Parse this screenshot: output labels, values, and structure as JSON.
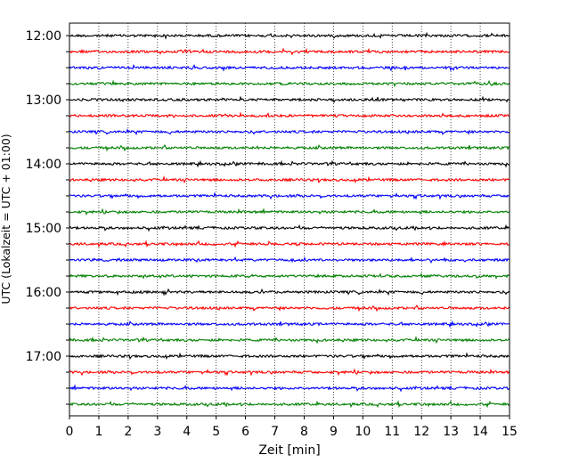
{
  "chart_data": {
    "type": "line",
    "title": "",
    "xlabel": "Zeit  [min]",
    "ylabel": "UTC (Lokalzeit = UTC + 01:00)",
    "xlim": [
      0,
      15
    ],
    "x_ticks": [
      0,
      1,
      2,
      3,
      4,
      5,
      6,
      7,
      8,
      9,
      10,
      11,
      12,
      13,
      14,
      15
    ],
    "y_tick_labels": [
      "12:00",
      "13:00",
      "14:00",
      "15:00",
      "16:00",
      "17:00"
    ],
    "grid": "vertical dotted at each minute",
    "trace_start": "12:00",
    "trace_interval_minutes": 15,
    "trace_count": 24,
    "trace_colors": [
      "#000000",
      "#ff0000",
      "#0000ff",
      "#007f00"
    ]
  }
}
